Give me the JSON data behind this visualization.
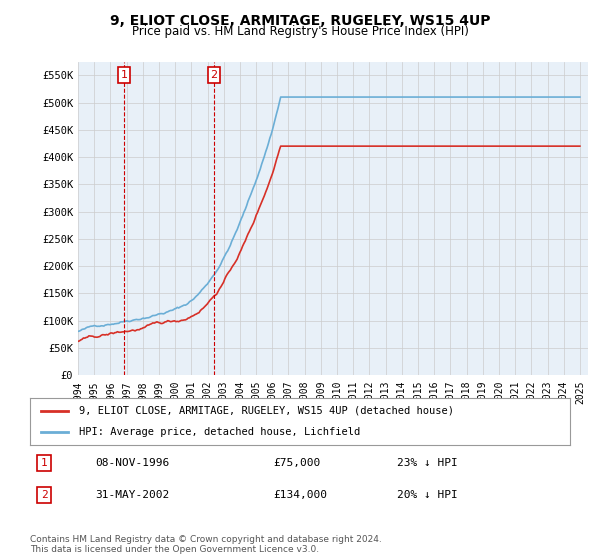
{
  "title": "9, ELIOT CLOSE, ARMITAGE, RUGELEY, WS15 4UP",
  "subtitle": "Price paid vs. HM Land Registry's House Price Index (HPI)",
  "xlim": [
    1994,
    2025.5
  ],
  "ylim": [
    0,
    575000
  ],
  "yticks": [
    0,
    50000,
    100000,
    150000,
    200000,
    250000,
    300000,
    350000,
    400000,
    450000,
    500000,
    550000
  ],
  "ytick_labels": [
    "£0",
    "£50K",
    "£100K",
    "£150K",
    "£200K",
    "£250K",
    "£300K",
    "£350K",
    "£400K",
    "£450K",
    "£500K",
    "£550K"
  ],
  "xticks": [
    1994,
    1995,
    1996,
    1997,
    1998,
    1999,
    2000,
    2001,
    2002,
    2003,
    2004,
    2005,
    2006,
    2007,
    2008,
    2009,
    2010,
    2011,
    2012,
    2013,
    2014,
    2015,
    2016,
    2017,
    2018,
    2019,
    2020,
    2021,
    2022,
    2023,
    2024,
    2025
  ],
  "legend_label_red": "9, ELIOT CLOSE, ARMITAGE, RUGELEY, WS15 4UP (detached house)",
  "legend_label_blue": "HPI: Average price, detached house, Lichfield",
  "purchase1_date": "08-NOV-1996",
  "purchase1_price": 75000,
  "purchase1_pct": "23% ↓ HPI",
  "purchase1_x": 1996.85,
  "purchase1_label": "1",
  "purchase2_date": "31-MAY-2002",
  "purchase2_price": 134000,
  "purchase2_pct": "20% ↓ HPI",
  "purchase2_x": 2002.4,
  "purchase2_label": "2",
  "footer": "Contains HM Land Registry data © Crown copyright and database right 2024.\nThis data is licensed under the Open Government Licence v3.0.",
  "hpi_color": "#6baed6",
  "price_color": "#d73027",
  "grid_color": "#cccccc",
  "bg_color": "#e8f0f8"
}
